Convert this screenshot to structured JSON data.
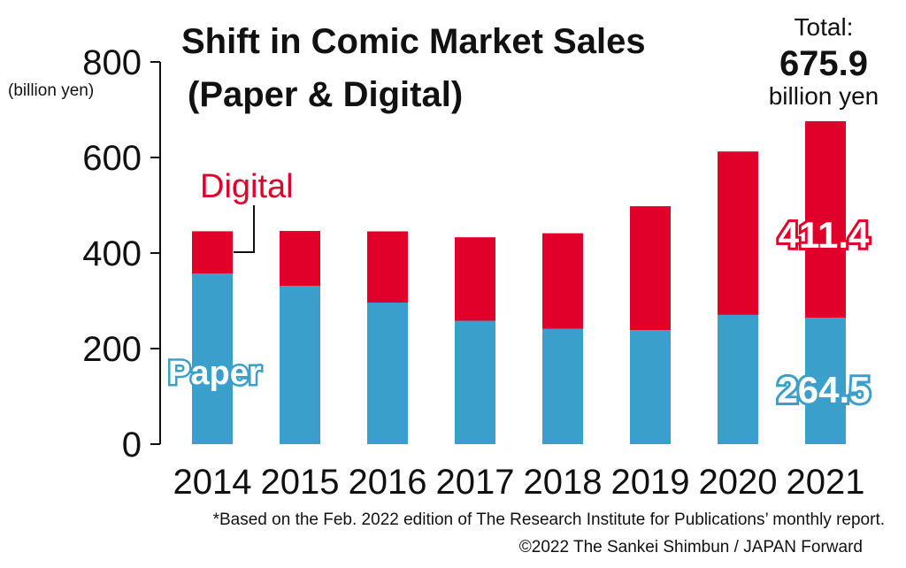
{
  "chart_data": {
    "type": "bar",
    "stacked": true,
    "title": "Shift in Comic Market Sales",
    "subtitle": "(Paper & Digital)",
    "ylabel": "(billion yen)",
    "xlabel": "",
    "ylim": [
      0,
      800
    ],
    "yticks": [
      "0",
      "200",
      "400",
      "600",
      "800"
    ],
    "categories": [
      "2014",
      "2015",
      "2016",
      "2017",
      "2018",
      "2019",
      "2020",
      "2021"
    ],
    "series": [
      {
        "name": "Paper",
        "color": "#3a9fcb",
        "values": [
          356.9,
          331.3,
          296.3,
          258.3,
          241.2,
          238.7,
          270.6,
          264.5
        ]
      },
      {
        "name": "Digital",
        "color": "#e1002a",
        "values": [
          88.7,
          114.9,
          149.1,
          174.7,
          200.2,
          259.3,
          342.0,
          411.4
        ]
      }
    ],
    "annotations": {
      "total_label": "Total:",
      "total_value": "675.9",
      "total_unit": "billion yen",
      "digital_2021": "411.4",
      "paper_2021": "264.5"
    },
    "grid": false,
    "legend": "inline labels"
  },
  "footnote": "*Based on the Feb. 2022 edition of The Research Institute for Publications’ monthly report.",
  "credit": "©2022 The Sankei Shimbun / JAPAN Forward"
}
